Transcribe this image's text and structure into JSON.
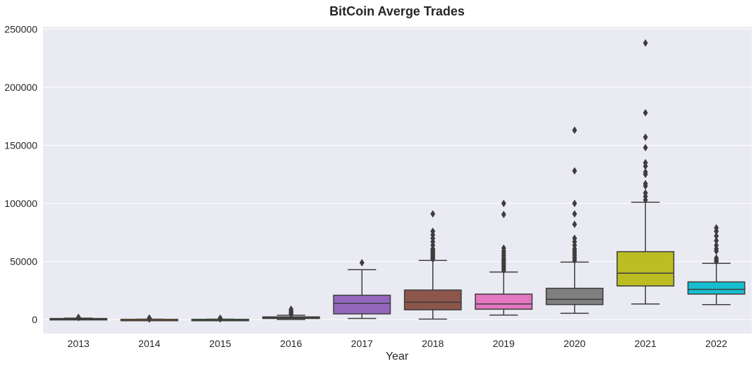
{
  "chart_data": {
    "type": "box",
    "title": "BitCoin Averge Trades",
    "xlabel": "Year",
    "ylabel": "",
    "ylim": [
      -12000,
      252000
    ],
    "yticks": [
      0,
      50000,
      100000,
      150000,
      200000,
      250000
    ],
    "grid": true,
    "categories": [
      "2013",
      "2014",
      "2015",
      "2016",
      "2017",
      "2018",
      "2019",
      "2020",
      "2021",
      "2022"
    ],
    "colors": [
      "#1f77b4",
      "#ff7f0e",
      "#2ca02c",
      "#d62728",
      "#9467bd",
      "#8c564b",
      "#e377c2",
      "#7f7f7f",
      "#bcbd22",
      "#17becf"
    ],
    "boxes": [
      {
        "year": "2013",
        "whisker_low": 0,
        "q1": 300,
        "median": 600,
        "q3": 1000,
        "whisker_high": 1300,
        "outliers": [
          1700,
          2000
        ]
      },
      {
        "year": "2014",
        "whisker_low": 0,
        "q1": 100,
        "median": 200,
        "q3": 300,
        "whisker_high": 400,
        "outliers": [
          500,
          600,
          700,
          900,
          1100,
          1400
        ]
      },
      {
        "year": "2015",
        "whisker_low": 0,
        "q1": 100,
        "median": 200,
        "q3": 300,
        "whisker_high": 400,
        "outliers": [
          600,
          800,
          1000,
          1300
        ]
      },
      {
        "year": "2016",
        "whisker_low": 200,
        "q1": 1000,
        "median": 1500,
        "q3": 2400,
        "whisker_high": 3800,
        "outliers": [
          4500,
          5500,
          6500,
          7500,
          9000
        ]
      },
      {
        "year": "2017",
        "whisker_low": 1000,
        "q1": 5000,
        "median": 14000,
        "q3": 21000,
        "whisker_high": 43000,
        "outliers": [
          49000
        ]
      },
      {
        "year": "2018",
        "whisker_low": 500,
        "q1": 8500,
        "median": 15000,
        "q3": 25500,
        "whisker_high": 51000,
        "outliers": [
          52000,
          53000,
          54000,
          55000,
          56000,
          57000,
          58000,
          59000,
          60000,
          61000,
          64000,
          67000,
          70000,
          73000,
          76000,
          91000
        ]
      },
      {
        "year": "2019",
        "whisker_low": 4000,
        "q1": 9000,
        "median": 13500,
        "q3": 22000,
        "whisker_high": 41000,
        "outliers": [
          42500,
          44000,
          45500,
          47000,
          48500,
          50000,
          51500,
          53000,
          55000,
          57000,
          59000,
          61500,
          90500,
          100000
        ]
      },
      {
        "year": "2020",
        "whisker_low": 5500,
        "q1": 13000,
        "median": 17500,
        "q3": 27000,
        "whisker_high": 49500,
        "outliers": [
          51000,
          53000,
          55000,
          57000,
          59000,
          61000,
          64000,
          67000,
          70000,
          82000,
          91000,
          100000,
          128000,
          163000
        ]
      },
      {
        "year": "2021",
        "whisker_low": 13500,
        "q1": 29000,
        "median": 40000,
        "q3": 58500,
        "whisker_high": 101000,
        "outliers": [
          103000,
          106000,
          109000,
          115000,
          117000,
          125000,
          127000,
          132000,
          135000,
          148000,
          157000,
          178000,
          238000
        ]
      },
      {
        "year": "2022",
        "whisker_low": 13000,
        "q1": 22000,
        "median": 26000,
        "q3": 32500,
        "whisker_high": 48500,
        "outliers": [
          50000,
          51500,
          53000,
          59000,
          61000,
          64000,
          68000,
          72000,
          76000,
          79000
        ]
      }
    ]
  }
}
